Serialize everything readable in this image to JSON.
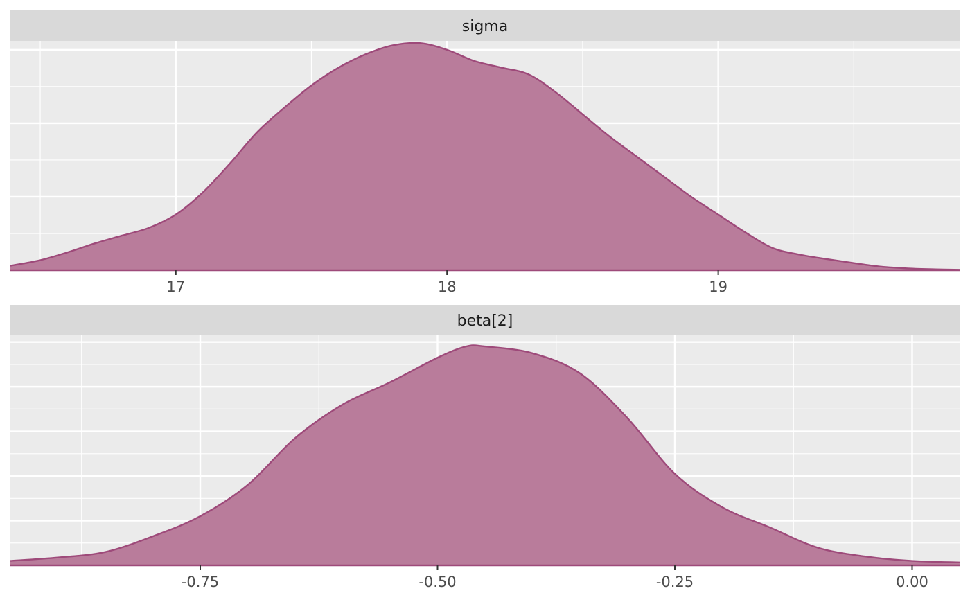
{
  "colors": {
    "panel_bg": "#EBEBEB",
    "strip_bg": "#D9D9D9",
    "grid_major": "#FFFFFF",
    "density_fill": "#B97C9B",
    "density_line": "#9E4A7A",
    "tick_text": "#4D4D4D"
  },
  "chart_data": [
    {
      "type": "area",
      "strip_label": "sigma",
      "xlim": [
        16.39,
        19.89
      ],
      "ylim": [
        0,
        1.03
      ],
      "x_ticks": [
        17,
        18,
        19
      ],
      "x_tick_labels": [
        "17",
        "18",
        "19"
      ],
      "x_minor": [
        16.5,
        17.5,
        18.5,
        19.5
      ],
      "y_grid_major": [
        0.33,
        0.66,
        0.99
      ],
      "y_grid_minor": [
        0.165,
        0.495,
        0.825
      ],
      "x": [
        16.39,
        16.5,
        16.6,
        16.7,
        16.8,
        16.9,
        17.0,
        17.1,
        17.2,
        17.3,
        17.4,
        17.5,
        17.6,
        17.7,
        17.8,
        17.9,
        18.0,
        18.1,
        18.2,
        18.3,
        18.4,
        18.5,
        18.6,
        18.7,
        18.8,
        18.9,
        19.0,
        19.1,
        19.2,
        19.3,
        19.4,
        19.5,
        19.6,
        19.7,
        19.8,
        19.89
      ],
      "y": [
        0.02,
        0.045,
        0.08,
        0.12,
        0.155,
        0.19,
        0.25,
        0.35,
        0.48,
        0.62,
        0.73,
        0.83,
        0.91,
        0.97,
        1.01,
        1.02,
        0.99,
        0.94,
        0.91,
        0.88,
        0.8,
        0.7,
        0.6,
        0.51,
        0.42,
        0.33,
        0.25,
        0.17,
        0.1,
        0.07,
        0.05,
        0.032,
        0.016,
        0.008,
        0.004,
        0.002
      ]
    },
    {
      "type": "area",
      "strip_label": "beta[2]",
      "xlim": [
        -0.95,
        0.05
      ],
      "ylim": [
        0,
        1.03
      ],
      "x_ticks": [
        -0.75,
        -0.5,
        -0.25,
        0.0
      ],
      "x_tick_labels": [
        "-0.75",
        "-0.50",
        "-0.25",
        "0.00"
      ],
      "x_minor": [
        -0.875,
        -0.625,
        -0.375,
        -0.125
      ],
      "y_grid_major": [
        0.2,
        0.4,
        0.6,
        0.8,
        1.0
      ],
      "y_grid_minor": [
        0.1,
        0.3,
        0.5,
        0.7,
        0.9
      ],
      "x": [
        -0.95,
        -0.9,
        -0.85,
        -0.8,
        -0.75,
        -0.7,
        -0.65,
        -0.6,
        -0.55,
        -0.5,
        -0.47,
        -0.45,
        -0.4,
        -0.35,
        -0.3,
        -0.25,
        -0.2,
        -0.15,
        -0.1,
        -0.05,
        0.0,
        0.05
      ],
      "y": [
        0.02,
        0.035,
        0.06,
        0.13,
        0.22,
        0.36,
        0.57,
        0.72,
        0.82,
        0.93,
        0.98,
        0.98,
        0.95,
        0.86,
        0.66,
        0.41,
        0.26,
        0.17,
        0.08,
        0.04,
        0.02,
        0.013
      ]
    }
  ]
}
